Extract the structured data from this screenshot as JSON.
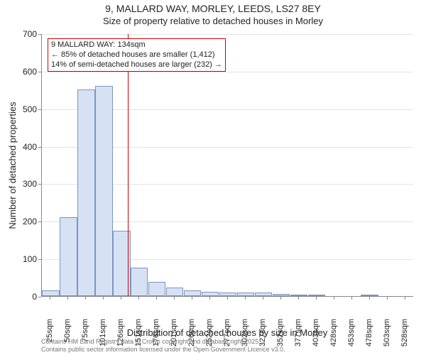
{
  "chart": {
    "type": "histogram",
    "title_main": "9, MALLARD WAY, MORLEY, LEEDS, LS27 8EY",
    "title_sub": "Size of property relative to detached houses in Morley",
    "xlabel": "Distribution of detached houses by size in Morley",
    "ylabel": "Number of detached properties",
    "ylim": [
      0,
      700
    ],
    "ytick_step": 100,
    "yticks": [
      0,
      100,
      200,
      300,
      400,
      500,
      600,
      700
    ],
    "background_color": "#ffffff",
    "grid_color": "#e4e4e4",
    "axis_color": "#888888",
    "bar_fill": "#d6e2f3",
    "bar_border": "#7a94c1",
    "ref_line_color": "#cc0000",
    "ref_line_x_value": 134,
    "categories": [
      "25sqm",
      "50sqm",
      "75sqm",
      "101sqm",
      "126sqm",
      "151sqm",
      "176sqm",
      "201sqm",
      "226sqm",
      "252sqm",
      "277sqm",
      "302sqm",
      "327sqm",
      "352sqm",
      "377sqm",
      "403sqm",
      "428sqm",
      "453sqm",
      "478sqm",
      "503sqm",
      "528sqm"
    ],
    "values": [
      15,
      210,
      550,
      560,
      175,
      75,
      38,
      22,
      15,
      12,
      10,
      9,
      10,
      5,
      2,
      2,
      0,
      0,
      2,
      0,
      0
    ],
    "annotation": {
      "line1": "9 MALLARD WAY: 134sqm",
      "line2": "← 85% of detached houses are smaller (1,412)",
      "line3": "14% of semi-detached houses are larger (232) →"
    },
    "attribution": {
      "line1": "Contains HM Land Registry data © Crown copyright and database right 2025.",
      "line2": "Contains public sector information licensed under the Open Government Licence v3.0."
    },
    "title_fontsize": 14,
    "subtitle_fontsize": 13,
    "label_fontsize": 13,
    "tick_fontsize": 12,
    "xtick_fontsize": 11
  }
}
